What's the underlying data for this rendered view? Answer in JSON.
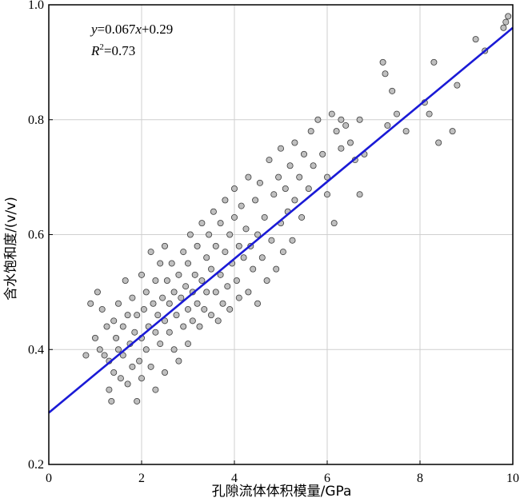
{
  "chart_data": {
    "type": "scatter",
    "title": "",
    "xlabel": "孔隙流体体积模量/GPa",
    "ylabel": "含水饱和度/(v/v)",
    "xlim": [
      0,
      10
    ],
    "ylim": [
      0.2,
      1.0
    ],
    "x_ticks": [
      "0",
      "2",
      "4",
      "6",
      "8",
      "10"
    ],
    "y_ticks": [
      "0.2",
      "0.4",
      "0.6",
      "0.8",
      "1.0"
    ],
    "grid": true,
    "annotation": {
      "equation_y": "y",
      "equation_rest": "=0.067",
      "equation_x": "x",
      "equation_tail": "+0.29",
      "r2_label": "R",
      "r2_sup": "2",
      "r2_value": "=0.73"
    },
    "fit": {
      "slope": 0.067,
      "intercept": 0.29,
      "color": "#1a1ad6"
    },
    "marker": {
      "fill": "#bfbfbf",
      "stroke": "#3a3a3a"
    },
    "series": [
      {
        "points": [
          [
            0.8,
            0.39
          ],
          [
            0.9,
            0.48
          ],
          [
            1.0,
            0.42
          ],
          [
            1.05,
            0.5
          ],
          [
            1.1,
            0.4
          ],
          [
            1.15,
            0.47
          ],
          [
            1.2,
            0.39
          ],
          [
            1.25,
            0.44
          ],
          [
            1.3,
            0.38
          ],
          [
            1.3,
            0.33
          ],
          [
            1.35,
            0.31
          ],
          [
            1.4,
            0.45
          ],
          [
            1.4,
            0.36
          ],
          [
            1.45,
            0.42
          ],
          [
            1.5,
            0.48
          ],
          [
            1.5,
            0.4
          ],
          [
            1.55,
            0.35
          ],
          [
            1.6,
            0.44
          ],
          [
            1.6,
            0.39
          ],
          [
            1.65,
            0.52
          ],
          [
            1.7,
            0.46
          ],
          [
            1.7,
            0.34
          ],
          [
            1.75,
            0.41
          ],
          [
            1.8,
            0.37
          ],
          [
            1.8,
            0.49
          ],
          [
            1.85,
            0.43
          ],
          [
            1.9,
            0.31
          ],
          [
            1.9,
            0.46
          ],
          [
            1.95,
            0.38
          ],
          [
            2.0,
            0.53
          ],
          [
            2.0,
            0.42
          ],
          [
            2.0,
            0.35
          ],
          [
            2.05,
            0.47
          ],
          [
            2.1,
            0.5
          ],
          [
            2.1,
            0.4
          ],
          [
            2.15,
            0.44
          ],
          [
            2.2,
            0.57
          ],
          [
            2.2,
            0.37
          ],
          [
            2.25,
            0.48
          ],
          [
            2.3,
            0.52
          ],
          [
            2.3,
            0.43
          ],
          [
            2.3,
            0.33
          ],
          [
            2.35,
            0.46
          ],
          [
            2.4,
            0.55
          ],
          [
            2.4,
            0.41
          ],
          [
            2.45,
            0.49
          ],
          [
            2.5,
            0.58
          ],
          [
            2.5,
            0.45
          ],
          [
            2.5,
            0.36
          ],
          [
            2.55,
            0.52
          ],
          [
            2.6,
            0.43
          ],
          [
            2.6,
            0.48
          ],
          [
            2.65,
            0.55
          ],
          [
            2.7,
            0.4
          ],
          [
            2.7,
            0.5
          ],
          [
            2.75,
            0.46
          ],
          [
            2.8,
            0.53
          ],
          [
            2.8,
            0.38
          ],
          [
            2.85,
            0.49
          ],
          [
            2.9,
            0.57
          ],
          [
            2.9,
            0.44
          ],
          [
            2.95,
            0.51
          ],
          [
            3.0,
            0.47
          ],
          [
            3.0,
            0.55
          ],
          [
            3.0,
            0.41
          ],
          [
            3.05,
            0.6
          ],
          [
            3.1,
            0.5
          ],
          [
            3.1,
            0.45
          ],
          [
            3.15,
            0.53
          ],
          [
            3.2,
            0.58
          ],
          [
            3.2,
            0.48
          ],
          [
            3.25,
            0.44
          ],
          [
            3.3,
            0.62
          ],
          [
            3.3,
            0.52
          ],
          [
            3.35,
            0.47
          ],
          [
            3.4,
            0.56
          ],
          [
            3.4,
            0.5
          ],
          [
            3.45,
            0.6
          ],
          [
            3.5,
            0.46
          ],
          [
            3.5,
            0.54
          ],
          [
            3.55,
            0.64
          ],
          [
            3.6,
            0.5
          ],
          [
            3.6,
            0.58
          ],
          [
            3.65,
            0.45
          ],
          [
            3.7,
            0.62
          ],
          [
            3.7,
            0.53
          ],
          [
            3.75,
            0.48
          ],
          [
            3.8,
            0.66
          ],
          [
            3.8,
            0.57
          ],
          [
            3.85,
            0.51
          ],
          [
            3.9,
            0.6
          ],
          [
            3.9,
            0.47
          ],
          [
            3.95,
            0.55
          ],
          [
            4.0,
            0.63
          ],
          [
            4.0,
            0.68
          ],
          [
            4.05,
            0.52
          ],
          [
            4.1,
            0.58
          ],
          [
            4.1,
            0.49
          ],
          [
            4.15,
            0.65
          ],
          [
            4.2,
            0.56
          ],
          [
            4.25,
            0.61
          ],
          [
            4.3,
            0.5
          ],
          [
            4.3,
            0.7
          ],
          [
            4.35,
            0.58
          ],
          [
            4.4,
            0.54
          ],
          [
            4.45,
            0.66
          ],
          [
            4.5,
            0.6
          ],
          [
            4.5,
            0.48
          ],
          [
            4.55,
            0.69
          ],
          [
            4.6,
            0.56
          ],
          [
            4.65,
            0.63
          ],
          [
            4.7,
            0.52
          ],
          [
            4.75,
            0.73
          ],
          [
            4.8,
            0.59
          ],
          [
            4.85,
            0.67
          ],
          [
            4.9,
            0.54
          ],
          [
            4.95,
            0.7
          ],
          [
            5.0,
            0.62
          ],
          [
            5.0,
            0.75
          ],
          [
            5.05,
            0.57
          ],
          [
            5.1,
            0.68
          ],
          [
            5.15,
            0.64
          ],
          [
            5.2,
            0.72
          ],
          [
            5.25,
            0.59
          ],
          [
            5.3,
            0.66
          ],
          [
            5.3,
            0.76
          ],
          [
            5.4,
            0.7
          ],
          [
            5.45,
            0.63
          ],
          [
            5.5,
            0.74
          ],
          [
            5.6,
            0.68
          ],
          [
            5.65,
            0.78
          ],
          [
            5.7,
            0.72
          ],
          [
            5.8,
            0.8
          ],
          [
            5.9,
            0.74
          ],
          [
            6.0,
            0.7
          ],
          [
            6.0,
            0.67
          ],
          [
            6.1,
            0.81
          ],
          [
            6.15,
            0.62
          ],
          [
            6.2,
            0.78
          ],
          [
            6.3,
            0.75
          ],
          [
            6.3,
            0.8
          ],
          [
            6.4,
            0.79
          ],
          [
            6.5,
            0.76
          ],
          [
            6.6,
            0.73
          ],
          [
            6.7,
            0.8
          ],
          [
            6.7,
            0.67
          ],
          [
            6.8,
            0.74
          ],
          [
            7.2,
            0.9
          ],
          [
            7.25,
            0.88
          ],
          [
            7.3,
            0.79
          ],
          [
            7.4,
            0.85
          ],
          [
            7.5,
            0.81
          ],
          [
            7.7,
            0.78
          ],
          [
            8.1,
            0.83
          ],
          [
            8.2,
            0.81
          ],
          [
            8.3,
            0.9
          ],
          [
            8.4,
            0.76
          ],
          [
            8.7,
            0.78
          ],
          [
            8.8,
            0.86
          ],
          [
            9.2,
            0.94
          ],
          [
            9.4,
            0.92
          ],
          [
            9.8,
            0.96
          ],
          [
            9.85,
            0.97
          ],
          [
            9.9,
            0.98
          ]
        ]
      }
    ]
  }
}
